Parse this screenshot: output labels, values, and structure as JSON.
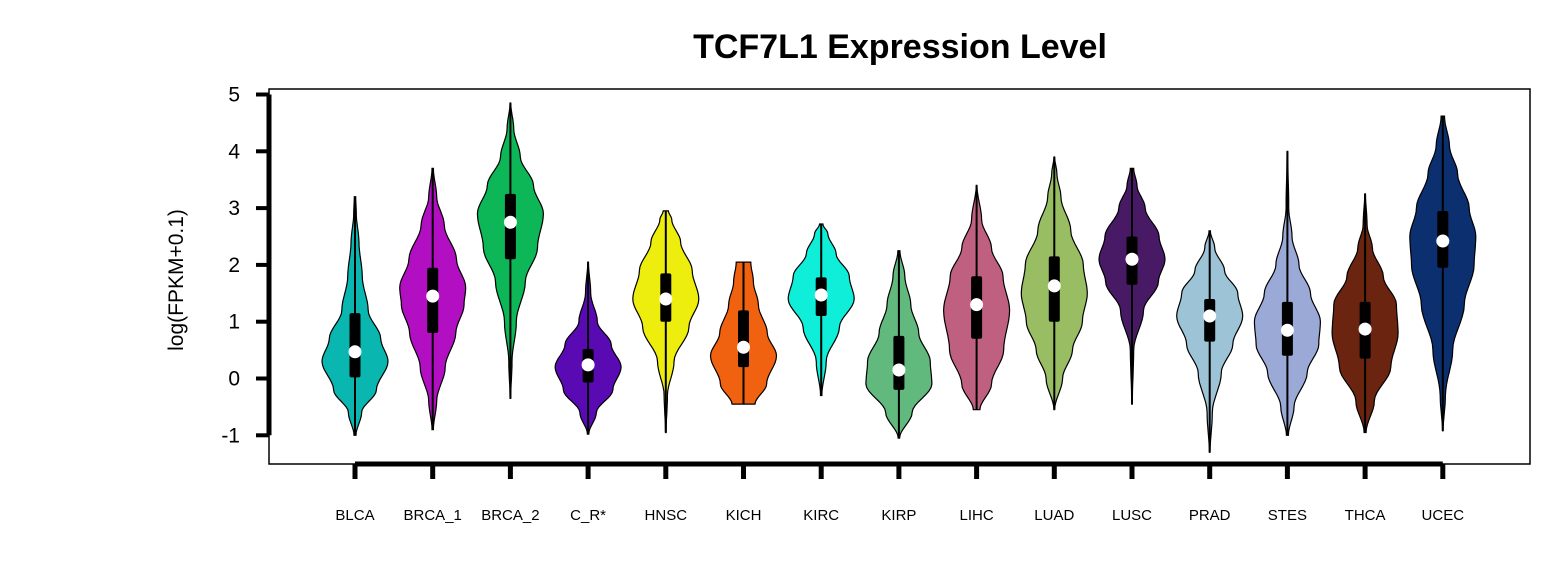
{
  "chart_data": {
    "type": "violin",
    "title": "TCF7L1 Expression Level",
    "xlabel": "",
    "ylabel": "log(FPKM+0.1)",
    "ylim": [
      -1.5,
      5.2
    ],
    "yticks": [
      -1,
      0,
      1,
      2,
      3,
      4,
      5
    ],
    "grid": false,
    "categories": [
      "BLCA",
      "BRCA_1",
      "BRCA_2",
      "C_R*",
      "HNSC",
      "KICH",
      "KIRC",
      "KIRP",
      "LIHC",
      "LUAD",
      "LUSC",
      "PRAD",
      "STES",
      "THCA",
      "UCEC"
    ],
    "series": [
      {
        "category": "BLCA",
        "color": "#0ab6b0",
        "median": 0.47,
        "q1": 0.02,
        "q3": 1.15,
        "min": -1.0,
        "max": 3.2,
        "density": [
          [
            -1.0,
            0.03
          ],
          [
            -0.6,
            0.2
          ],
          [
            -0.2,
            0.65
          ],
          [
            0.3,
            1.0
          ],
          [
            0.7,
            0.78
          ],
          [
            1.2,
            0.4
          ],
          [
            1.8,
            0.22
          ],
          [
            2.4,
            0.12
          ],
          [
            2.9,
            0.04
          ],
          [
            3.2,
            0.02
          ]
        ]
      },
      {
        "category": "BRCA_1",
        "color": "#b20fc2",
        "median": 1.45,
        "q1": 0.8,
        "q3": 1.95,
        "min": -0.9,
        "max": 3.7,
        "density": [
          [
            -0.9,
            0.02
          ],
          [
            -0.4,
            0.12
          ],
          [
            0.2,
            0.38
          ],
          [
            0.8,
            0.7
          ],
          [
            1.3,
            0.95
          ],
          [
            1.6,
            1.0
          ],
          [
            2.1,
            0.72
          ],
          [
            2.7,
            0.35
          ],
          [
            3.2,
            0.12
          ],
          [
            3.7,
            0.02
          ]
        ]
      },
      {
        "category": "BRCA_2",
        "color": "#0db656",
        "median": 2.75,
        "q1": 2.1,
        "q3": 3.25,
        "min": -0.35,
        "max": 4.85,
        "density": [
          [
            -0.35,
            0.01
          ],
          [
            0.3,
            0.05
          ],
          [
            1.0,
            0.18
          ],
          [
            1.7,
            0.45
          ],
          [
            2.3,
            0.82
          ],
          [
            2.9,
            1.0
          ],
          [
            3.4,
            0.7
          ],
          [
            3.9,
            0.3
          ],
          [
            4.4,
            0.1
          ],
          [
            4.85,
            0.01
          ]
        ]
      },
      {
        "category": "C_R*",
        "color": "#5a0ab3",
        "median": 0.24,
        "q1": -0.07,
        "q3": 0.52,
        "min": -0.98,
        "max": 2.05,
        "density": [
          [
            -0.98,
            0.02
          ],
          [
            -0.6,
            0.25
          ],
          [
            -0.2,
            0.75
          ],
          [
            0.2,
            1.0
          ],
          [
            0.6,
            0.7
          ],
          [
            1.0,
            0.28
          ],
          [
            1.5,
            0.08
          ],
          [
            2.05,
            0.01
          ]
        ]
      },
      {
        "category": "HNSC",
        "color": "#eeee0e",
        "median": 1.4,
        "q1": 1.0,
        "q3": 1.85,
        "min": -0.95,
        "max": 2.95,
        "density": [
          [
            -0.95,
            0.01
          ],
          [
            -0.3,
            0.05
          ],
          [
            0.3,
            0.25
          ],
          [
            0.9,
            0.7
          ],
          [
            1.4,
            1.0
          ],
          [
            1.9,
            0.8
          ],
          [
            2.4,
            0.45
          ],
          [
            2.8,
            0.18
          ],
          [
            2.95,
            0.08
          ]
        ]
      },
      {
        "category": "KICH",
        "color": "#f0620f",
        "median": 0.55,
        "q1": 0.2,
        "q3": 1.2,
        "min": -0.45,
        "max": 2.05,
        "density": [
          [
            -0.45,
            0.35
          ],
          [
            -0.1,
            0.7
          ],
          [
            0.4,
            1.0
          ],
          [
            0.8,
            0.72
          ],
          [
            1.3,
            0.45
          ],
          [
            1.7,
            0.3
          ],
          [
            2.05,
            0.22
          ]
        ]
      },
      {
        "category": "KIRC",
        "color": "#0eeed8",
        "median": 1.47,
        "q1": 1.1,
        "q3": 1.78,
        "min": -0.3,
        "max": 2.72,
        "density": [
          [
            -0.3,
            0.02
          ],
          [
            0.3,
            0.15
          ],
          [
            0.9,
            0.55
          ],
          [
            1.4,
            1.0
          ],
          [
            1.8,
            0.85
          ],
          [
            2.2,
            0.45
          ],
          [
            2.55,
            0.2
          ],
          [
            2.72,
            0.05
          ]
        ]
      },
      {
        "category": "KIRP",
        "color": "#62b97e",
        "median": 0.15,
        "q1": -0.2,
        "q3": 0.75,
        "min": -1.05,
        "max": 2.25,
        "density": [
          [
            -1.05,
            0.02
          ],
          [
            -0.6,
            0.4
          ],
          [
            -0.1,
            1.0
          ],
          [
            0.3,
            0.95
          ],
          [
            0.8,
            0.6
          ],
          [
            1.3,
            0.36
          ],
          [
            1.8,
            0.18
          ],
          [
            2.25,
            0.03
          ]
        ]
      },
      {
        "category": "LIHC",
        "color": "#c06080",
        "median": 1.3,
        "q1": 0.7,
        "q3": 1.8,
        "min": -0.55,
        "max": 3.4,
        "density": [
          [
            -0.55,
            0.1
          ],
          [
            -0.1,
            0.45
          ],
          [
            0.5,
            0.82
          ],
          [
            1.2,
            1.0
          ],
          [
            1.8,
            0.8
          ],
          [
            2.3,
            0.45
          ],
          [
            2.8,
            0.15
          ],
          [
            3.4,
            0.01
          ]
        ]
      },
      {
        "category": "LUAD",
        "color": "#98bd62",
        "median": 1.63,
        "q1": 1.0,
        "q3": 2.15,
        "min": -0.55,
        "max": 3.9,
        "density": [
          [
            -0.55,
            0.01
          ],
          [
            0.0,
            0.25
          ],
          [
            0.5,
            0.55
          ],
          [
            1.0,
            0.85
          ],
          [
            1.5,
            1.0
          ],
          [
            2.0,
            0.88
          ],
          [
            2.6,
            0.5
          ],
          [
            3.2,
            0.2
          ],
          [
            3.6,
            0.08
          ],
          [
            3.9,
            0.01
          ]
        ]
      },
      {
        "category": "LUSC",
        "color": "#481a66",
        "median": 2.1,
        "q1": 1.65,
        "q3": 2.5,
        "min": -0.45,
        "max": 3.7,
        "density": [
          [
            -0.45,
            0.01
          ],
          [
            0.5,
            0.05
          ],
          [
            1.2,
            0.35
          ],
          [
            1.7,
            0.8
          ],
          [
            2.1,
            1.0
          ],
          [
            2.5,
            0.82
          ],
          [
            3.0,
            0.4
          ],
          [
            3.4,
            0.15
          ],
          [
            3.7,
            0.05
          ]
        ]
      },
      {
        "category": "PRAD",
        "color": "#9cc3d6",
        "median": 1.1,
        "q1": 0.65,
        "q3": 1.4,
        "min": -1.3,
        "max": 2.6,
        "density": [
          [
            -1.3,
            0.01
          ],
          [
            -0.6,
            0.08
          ],
          [
            0.1,
            0.35
          ],
          [
            0.6,
            0.7
          ],
          [
            1.1,
            1.0
          ],
          [
            1.5,
            0.85
          ],
          [
            1.9,
            0.45
          ],
          [
            2.3,
            0.15
          ],
          [
            2.6,
            0.02
          ]
        ]
      },
      {
        "category": "STES",
        "color": "#9aa9d6",
        "median": 0.85,
        "q1": 0.4,
        "q3": 1.35,
        "min": -1.0,
        "max": 4.0,
        "density": [
          [
            -1.0,
            0.03
          ],
          [
            -0.5,
            0.2
          ],
          [
            0.1,
            0.6
          ],
          [
            0.6,
            0.95
          ],
          [
            1.0,
            1.0
          ],
          [
            1.5,
            0.7
          ],
          [
            2.0,
            0.35
          ],
          [
            2.5,
            0.14
          ],
          [
            3.0,
            0.04
          ],
          [
            4.0,
            0.01
          ]
        ]
      },
      {
        "category": "THCA",
        "color": "#6b2410",
        "median": 0.87,
        "q1": 0.35,
        "q3": 1.35,
        "min": -0.95,
        "max": 3.25,
        "density": [
          [
            -0.95,
            0.03
          ],
          [
            -0.4,
            0.28
          ],
          [
            0.2,
            0.78
          ],
          [
            0.8,
            1.0
          ],
          [
            1.3,
            0.95
          ],
          [
            1.8,
            0.55
          ],
          [
            2.3,
            0.22
          ],
          [
            2.7,
            0.06
          ],
          [
            3.25,
            0.01
          ]
        ]
      },
      {
        "category": "UCEC",
        "color": "#0c2f70",
        "median": 2.42,
        "q1": 1.95,
        "q3": 2.95,
        "min": -0.92,
        "max": 4.62,
        "density": [
          [
            -0.92,
            0.01
          ],
          [
            -0.3,
            0.08
          ],
          [
            0.5,
            0.3
          ],
          [
            1.3,
            0.65
          ],
          [
            2.0,
            0.95
          ],
          [
            2.5,
            1.0
          ],
          [
            3.0,
            0.8
          ],
          [
            3.6,
            0.45
          ],
          [
            4.1,
            0.2
          ],
          [
            4.62,
            0.05
          ]
        ]
      }
    ]
  }
}
